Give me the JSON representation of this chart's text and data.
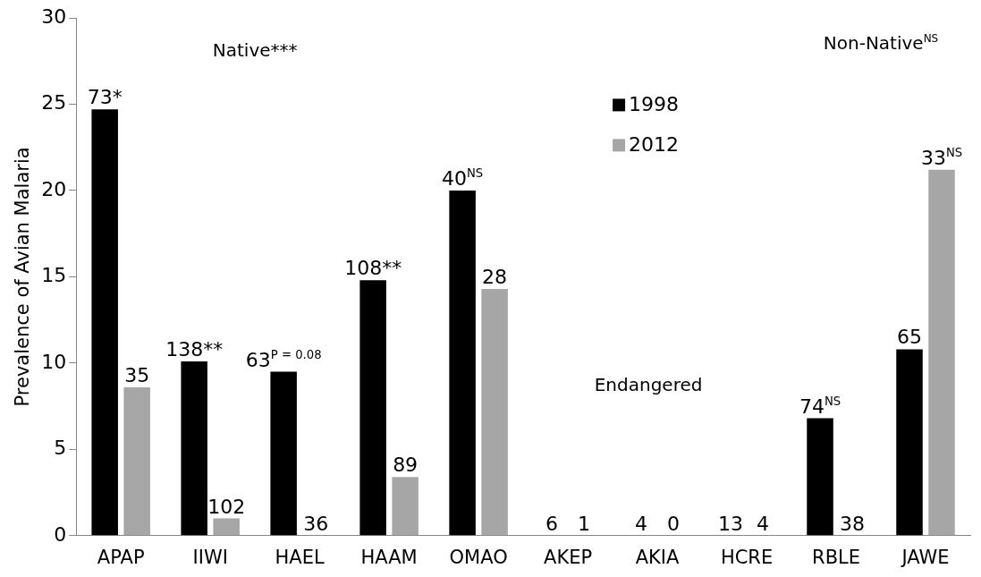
{
  "chart_data": {
    "type": "bar",
    "ylabel": "Prevalence of Avian Malaria",
    "categories": [
      "APAP",
      "IIWI",
      "HAEL",
      "HAAM",
      "OMAO",
      "AKEP",
      "AKIA",
      "HCRE",
      "RBLE",
      "JAWE"
    ],
    "series": [
      {
        "name": "1998",
        "color": "#000000",
        "values": [
          24.7,
          10.1,
          9.5,
          14.8,
          20.0,
          0,
          0,
          0,
          6.8,
          10.8
        ]
      },
      {
        "name": "2012",
        "color": "#a6a6a6",
        "values": [
          8.6,
          1.0,
          0,
          3.4,
          14.3,
          0,
          0,
          0,
          0,
          21.2
        ]
      }
    ],
    "ylim": [
      0,
      30
    ],
    "yticks": [
      0,
      5,
      10,
      15,
      20,
      25,
      30
    ],
    "grid": false,
    "legend": "top",
    "annotations": [
      "Native***",
      "Non-Native$^{NS}$",
      "Endangered",
      {
        "text": "73*",
        "x": "APAP",
        "y": 24.7
      },
      {
        "text": "35",
        "x": "APAP",
        "y": 8.6
      },
      {
        "text": "138**",
        "x": "IIWI",
        "y": 10.1
      },
      {
        "text": "102",
        "x": "IIWI",
        "y": 1.0
      },
      {
        "text": "63$^{P = 0.08}$",
        "x": "HAEL",
        "y": 9.5
      },
      {
        "text": "36",
        "x": "HAEL",
        "y": 0
      },
      {
        "text": "108**",
        "x": "HAAM",
        "y": 14.8
      },
      {
        "text": "89",
        "x": "HAAM",
        "y": 3.4
      },
      {
        "text": "40$^{NS}$",
        "x": "OMAO",
        "y": 20.0
      },
      {
        "text": "28",
        "x": "OMAO",
        "y": 14.3
      },
      {
        "text": "6",
        "x": "AKEP",
        "y": 0
      },
      {
        "text": "1",
        "x": "AKEP",
        "y": 0
      },
      {
        "text": "4",
        "x": "AKIA",
        "y": 0
      },
      {
        "text": "0",
        "x": "AKIA",
        "y": 0
      },
      {
        "text": "13",
        "x": "HCRE",
        "y": 0
      },
      {
        "text": "4",
        "x": "HCRE",
        "y": 0
      },
      {
        "text": "74$^{NS}$",
        "x": "RBLE",
        "y": 6.8
      },
      {
        "text": "38",
        "x": "RBLE",
        "y": 0
      },
      {
        "text": "65",
        "x": "JAWE",
        "y": 10.8
      },
      {
        "text": "33$^{NS}$",
        "x": "JAWE",
        "y": 21.2
      }
    ]
  }
}
